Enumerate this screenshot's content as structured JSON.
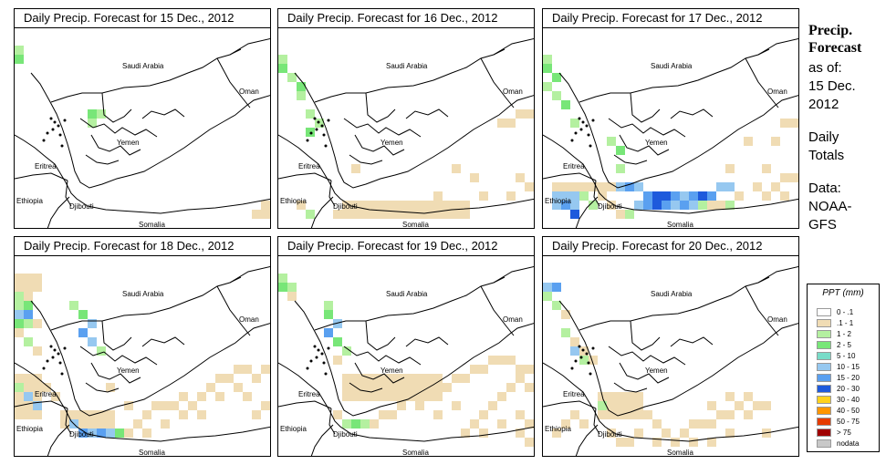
{
  "panels": [
    {
      "title": "Daily Precip. Forecast for  15 Dec., 2012",
      "precip": "p15"
    },
    {
      "title": "Daily Precip. Forecast for  16 Dec., 2012",
      "precip": "p16"
    },
    {
      "title": "Daily Precip. Forecast for  17 Dec., 2012",
      "precip": "p17"
    },
    {
      "title": "Daily Precip. Forecast for  18 Dec., 2012",
      "precip": "p18"
    },
    {
      "title": "Daily Precip. Forecast for  19 Dec., 2012",
      "precip": "p19"
    },
    {
      "title": "Daily Precip. Forecast for  20 Dec., 2012",
      "precip": "p20"
    }
  ],
  "places": {
    "saudi": "Saudi Arabia",
    "oman": "Oman",
    "yemen": "Yemen",
    "eritrea": "Eritrea",
    "ethiopia": "Ethiopia",
    "djibouti": "Djibouti",
    "somalia": "Somalia"
  },
  "side": {
    "heading1": "Precip.",
    "heading2": "Forecast",
    "asof": "as of:",
    "date1": "15 Dec.",
    "date2": "2012",
    "daily": "Daily",
    "totals": "Totals",
    "data_label": "Data:",
    "source1": "NOAA-",
    "source2": "GFS"
  },
  "legend": {
    "title": "PPT (mm)",
    "items": [
      {
        "label": "0 - .1",
        "color": "#ffffff"
      },
      {
        "label": ".1 - 1",
        "color": "#f0dcb4"
      },
      {
        "label": "1 - 2",
        "color": "#b4f0a0"
      },
      {
        "label": "2 - 5",
        "color": "#78e678"
      },
      {
        "label": "5 - 10",
        "color": "#78dcc8"
      },
      {
        "label": "10 - 15",
        "color": "#96c8f0"
      },
      {
        "label": "15 - 20",
        "color": "#5aa0f0"
      },
      {
        "label": "20 - 30",
        "color": "#1e5adc"
      },
      {
        "label": "30 - 40",
        "color": "#ffd21e"
      },
      {
        "label": "40 - 50",
        "color": "#ff9600"
      },
      {
        "label": "50 - 75",
        "color": "#e63c00"
      },
      {
        "label": "> 75",
        "color": "#a00000"
      },
      {
        "label": "nodata",
        "color": "#c8c8c8"
      }
    ]
  }
}
